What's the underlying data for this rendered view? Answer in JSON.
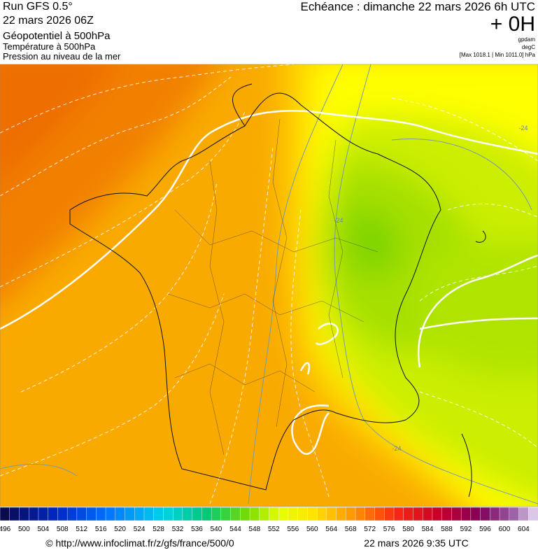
{
  "header": {
    "run": "Run GFS 0.5°",
    "run_date": "22 mars 2026 06Z",
    "field_1": "Géopotentiel à 500hPa",
    "field_2": "Température à 500hPa",
    "field_3": "Pression au niveau de la mer",
    "echeance": "Echéance : dimanche 22 mars 2026 6h UTC",
    "lead": "+ 0H",
    "unit_1": "gpdam",
    "unit_2": "degC",
    "pressure_range": "[Max 1018.1 | Min 1011.0] hPa"
  },
  "map": {
    "contour_labels": [
      "-24",
      "-24",
      "-24"
    ]
  },
  "colorbar": {
    "labels": [
      496,
      500,
      504,
      508,
      512,
      516,
      520,
      524,
      528,
      532,
      536,
      540,
      544,
      548,
      552,
      556,
      560,
      564,
      568,
      572,
      576,
      580,
      584,
      588,
      592,
      596,
      600,
      604
    ]
  },
  "footer": {
    "source": "© http://www.infoclimat.fr/z/gfs/france/500/0",
    "timestamp": "22 mars 2026  9:35 UTC"
  }
}
